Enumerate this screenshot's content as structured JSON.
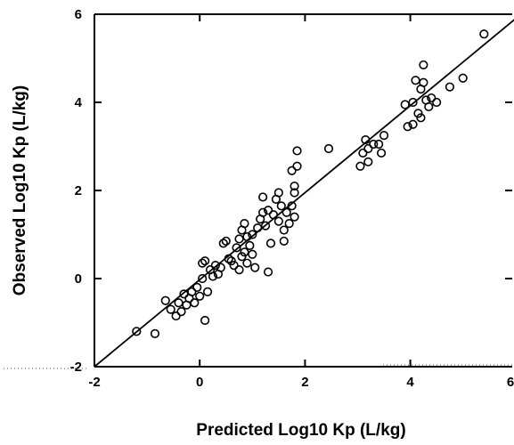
{
  "chart_data": {
    "type": "scatter",
    "title": "",
    "xlabel": "Predicted Log10 Kp (L/kg)",
    "ylabel": "Observed Log10 Kp (L/kg)",
    "xlim": [
      -2,
      6
    ],
    "ylim": [
      -2,
      6
    ],
    "xticks": [
      "-2",
      "0",
      "2",
      "4",
      "6"
    ],
    "yticks": [
      "-2",
      "0",
      "2",
      "4",
      "6"
    ],
    "grid": false,
    "legend": "none",
    "series": [
      {
        "points": [
          [
            -1.2,
            -1.2
          ],
          [
            -0.85,
            -1.25
          ],
          [
            -0.65,
            -0.5
          ],
          [
            -0.55,
            -0.7
          ],
          [
            -0.45,
            -0.85
          ],
          [
            -0.4,
            -0.55
          ],
          [
            -0.35,
            -0.75
          ],
          [
            -0.3,
            -0.35
          ],
          [
            -0.25,
            -0.6
          ],
          [
            -0.2,
            -0.45
          ],
          [
            -0.15,
            -0.3
          ],
          [
            -0.1,
            -0.55
          ],
          [
            -0.05,
            -0.2
          ],
          [
            0.0,
            -0.4
          ],
          [
            0.05,
            0.0
          ],
          [
            0.05,
            0.35
          ],
          [
            0.1,
            0.4
          ],
          [
            0.15,
            -0.3
          ],
          [
            0.1,
            -0.95
          ],
          [
            0.2,
            0.2
          ],
          [
            0.25,
            0.05
          ],
          [
            0.3,
            0.3
          ],
          [
            0.35,
            0.1
          ],
          [
            0.4,
            0.25
          ],
          [
            0.45,
            0.8
          ],
          [
            0.5,
            0.85
          ],
          [
            0.55,
            0.45
          ],
          [
            0.6,
            0.4
          ],
          [
            0.65,
            0.3
          ],
          [
            0.7,
            0.7
          ],
          [
            0.75,
            0.9
          ],
          [
            0.75,
            0.2
          ],
          [
            0.8,
            0.5
          ],
          [
            0.8,
            1.1
          ],
          [
            0.85,
            1.25
          ],
          [
            0.85,
            0.6
          ],
          [
            0.9,
            0.95
          ],
          [
            0.9,
            0.35
          ],
          [
            0.95,
            0.75
          ],
          [
            1.0,
            1.0
          ],
          [
            1.0,
            0.55
          ],
          [
            1.05,
            0.25
          ],
          [
            1.1,
            1.15
          ],
          [
            1.15,
            1.35
          ],
          [
            1.2,
            1.5
          ],
          [
            1.2,
            1.85
          ],
          [
            1.25,
            1.2
          ],
          [
            1.3,
            1.55
          ],
          [
            1.35,
            0.8
          ],
          [
            1.3,
            0.15
          ],
          [
            1.4,
            1.45
          ],
          [
            1.45,
            1.8
          ],
          [
            1.5,
            1.95
          ],
          [
            1.5,
            1.3
          ],
          [
            1.55,
            1.65
          ],
          [
            1.6,
            1.1
          ],
          [
            1.65,
            1.5
          ],
          [
            1.6,
            0.85
          ],
          [
            1.7,
            1.25
          ],
          [
            1.75,
            2.45
          ],
          [
            1.75,
            1.65
          ],
          [
            1.8,
            1.95
          ],
          [
            1.8,
            2.1
          ],
          [
            1.8,
            1.4
          ],
          [
            1.85,
            2.55
          ],
          [
            1.85,
            2.9
          ],
          [
            2.45,
            2.95
          ],
          [
            3.05,
            2.55
          ],
          [
            3.1,
            2.85
          ],
          [
            3.15,
            3.15
          ],
          [
            3.2,
            2.95
          ],
          [
            3.2,
            2.65
          ],
          [
            3.3,
            3.05
          ],
          [
            3.4,
            3.05
          ],
          [
            3.45,
            2.85
          ],
          [
            3.5,
            3.25
          ],
          [
            3.9,
            3.95
          ],
          [
            3.95,
            3.45
          ],
          [
            4.05,
            3.5
          ],
          [
            4.05,
            4.0
          ],
          [
            4.1,
            4.5
          ],
          [
            4.15,
            3.75
          ],
          [
            4.2,
            3.65
          ],
          [
            4.2,
            4.3
          ],
          [
            4.25,
            4.85
          ],
          [
            4.25,
            4.45
          ],
          [
            4.3,
            4.05
          ],
          [
            4.35,
            3.9
          ],
          [
            4.4,
            4.1
          ],
          [
            4.5,
            4.0
          ],
          [
            4.75,
            4.35
          ],
          [
            5.0,
            4.55
          ],
          [
            5.4,
            5.55
          ]
        ]
      }
    ],
    "fit_line": {
      "x": [
        -2,
        6
      ],
      "y": [
        -2,
        5.9
      ]
    }
  }
}
